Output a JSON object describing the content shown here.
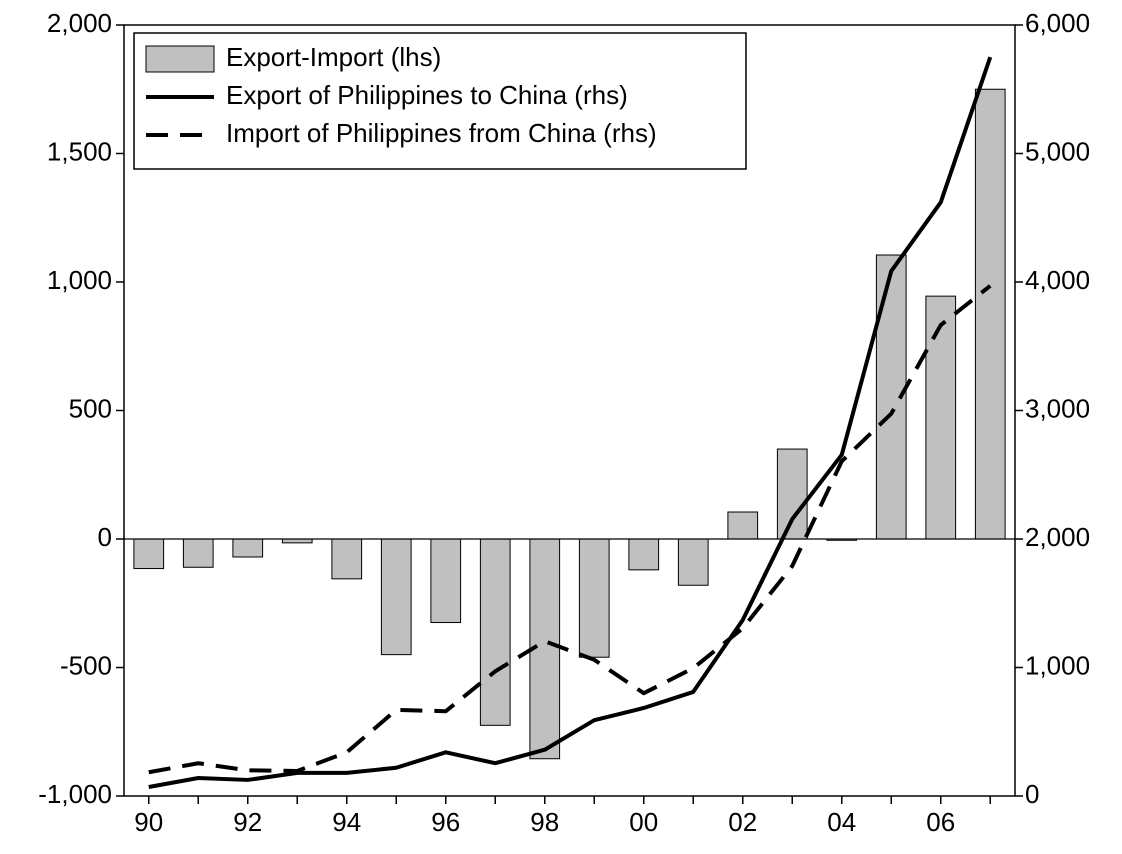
{
  "chart_data": {
    "type": "bar",
    "categories": [
      "90",
      null,
      "92",
      null,
      "94",
      null,
      "96",
      null,
      "98",
      null,
      "00",
      null,
      "02",
      null,
      "04",
      null,
      "06",
      null
    ],
    "series": [
      {
        "name": "Export-Import (lhs)",
        "type": "bar",
        "color": "#c0c0c0",
        "axis": "y",
        "values": [
          -115,
          -110,
          -70,
          -15,
          -155,
          -450,
          -325,
          -725,
          -855,
          -460,
          -120,
          -180,
          105,
          350,
          -5,
          1105,
          945,
          1750
        ]
      },
      {
        "name": "Export of Philippines to China (rhs)",
        "type": "line",
        "color": "#000000",
        "dashed": false,
        "axis": "y2",
        "values": [
          70,
          140,
          125,
          180,
          180,
          220,
          340,
          255,
          360,
          590,
          685,
          810,
          1370,
          2155,
          2655,
          4085,
          4620,
          5750
        ]
      },
      {
        "name": "Import of Philippines from China (rhs)",
        "type": "line",
        "color": "#000000",
        "dashed": true,
        "axis": "y2",
        "values": [
          185,
          255,
          200,
          195,
          340,
          670,
          660,
          970,
          1205,
          1060,
          800,
          995,
          1305,
          1790,
          2605,
          2975,
          3665,
          3970
        ]
      }
    ],
    "ylim": [
      -1000,
      2000
    ],
    "yticks": [
      {
        "value": -1000,
        "label": "-1,000"
      },
      -500,
      0,
      500,
      {
        "value": 1000,
        "label": "1,000"
      },
      {
        "value": 1500,
        "label": "1,500"
      },
      {
        "value": 2000,
        "label": "2,000"
      }
    ],
    "y2lim": [
      0,
      6000
    ],
    "y2ticks": [
      0,
      {
        "value": 1000,
        "label": "1,000"
      },
      {
        "value": 2000,
        "label": "2,000"
      },
      {
        "value": 3000,
        "label": "3,000"
      },
      {
        "value": 4000,
        "label": "4,000"
      },
      {
        "value": 5000,
        "label": "5,000"
      },
      {
        "value": 6000,
        "label": "6,000"
      }
    ],
    "legend": "top-left",
    "grid": false
  }
}
